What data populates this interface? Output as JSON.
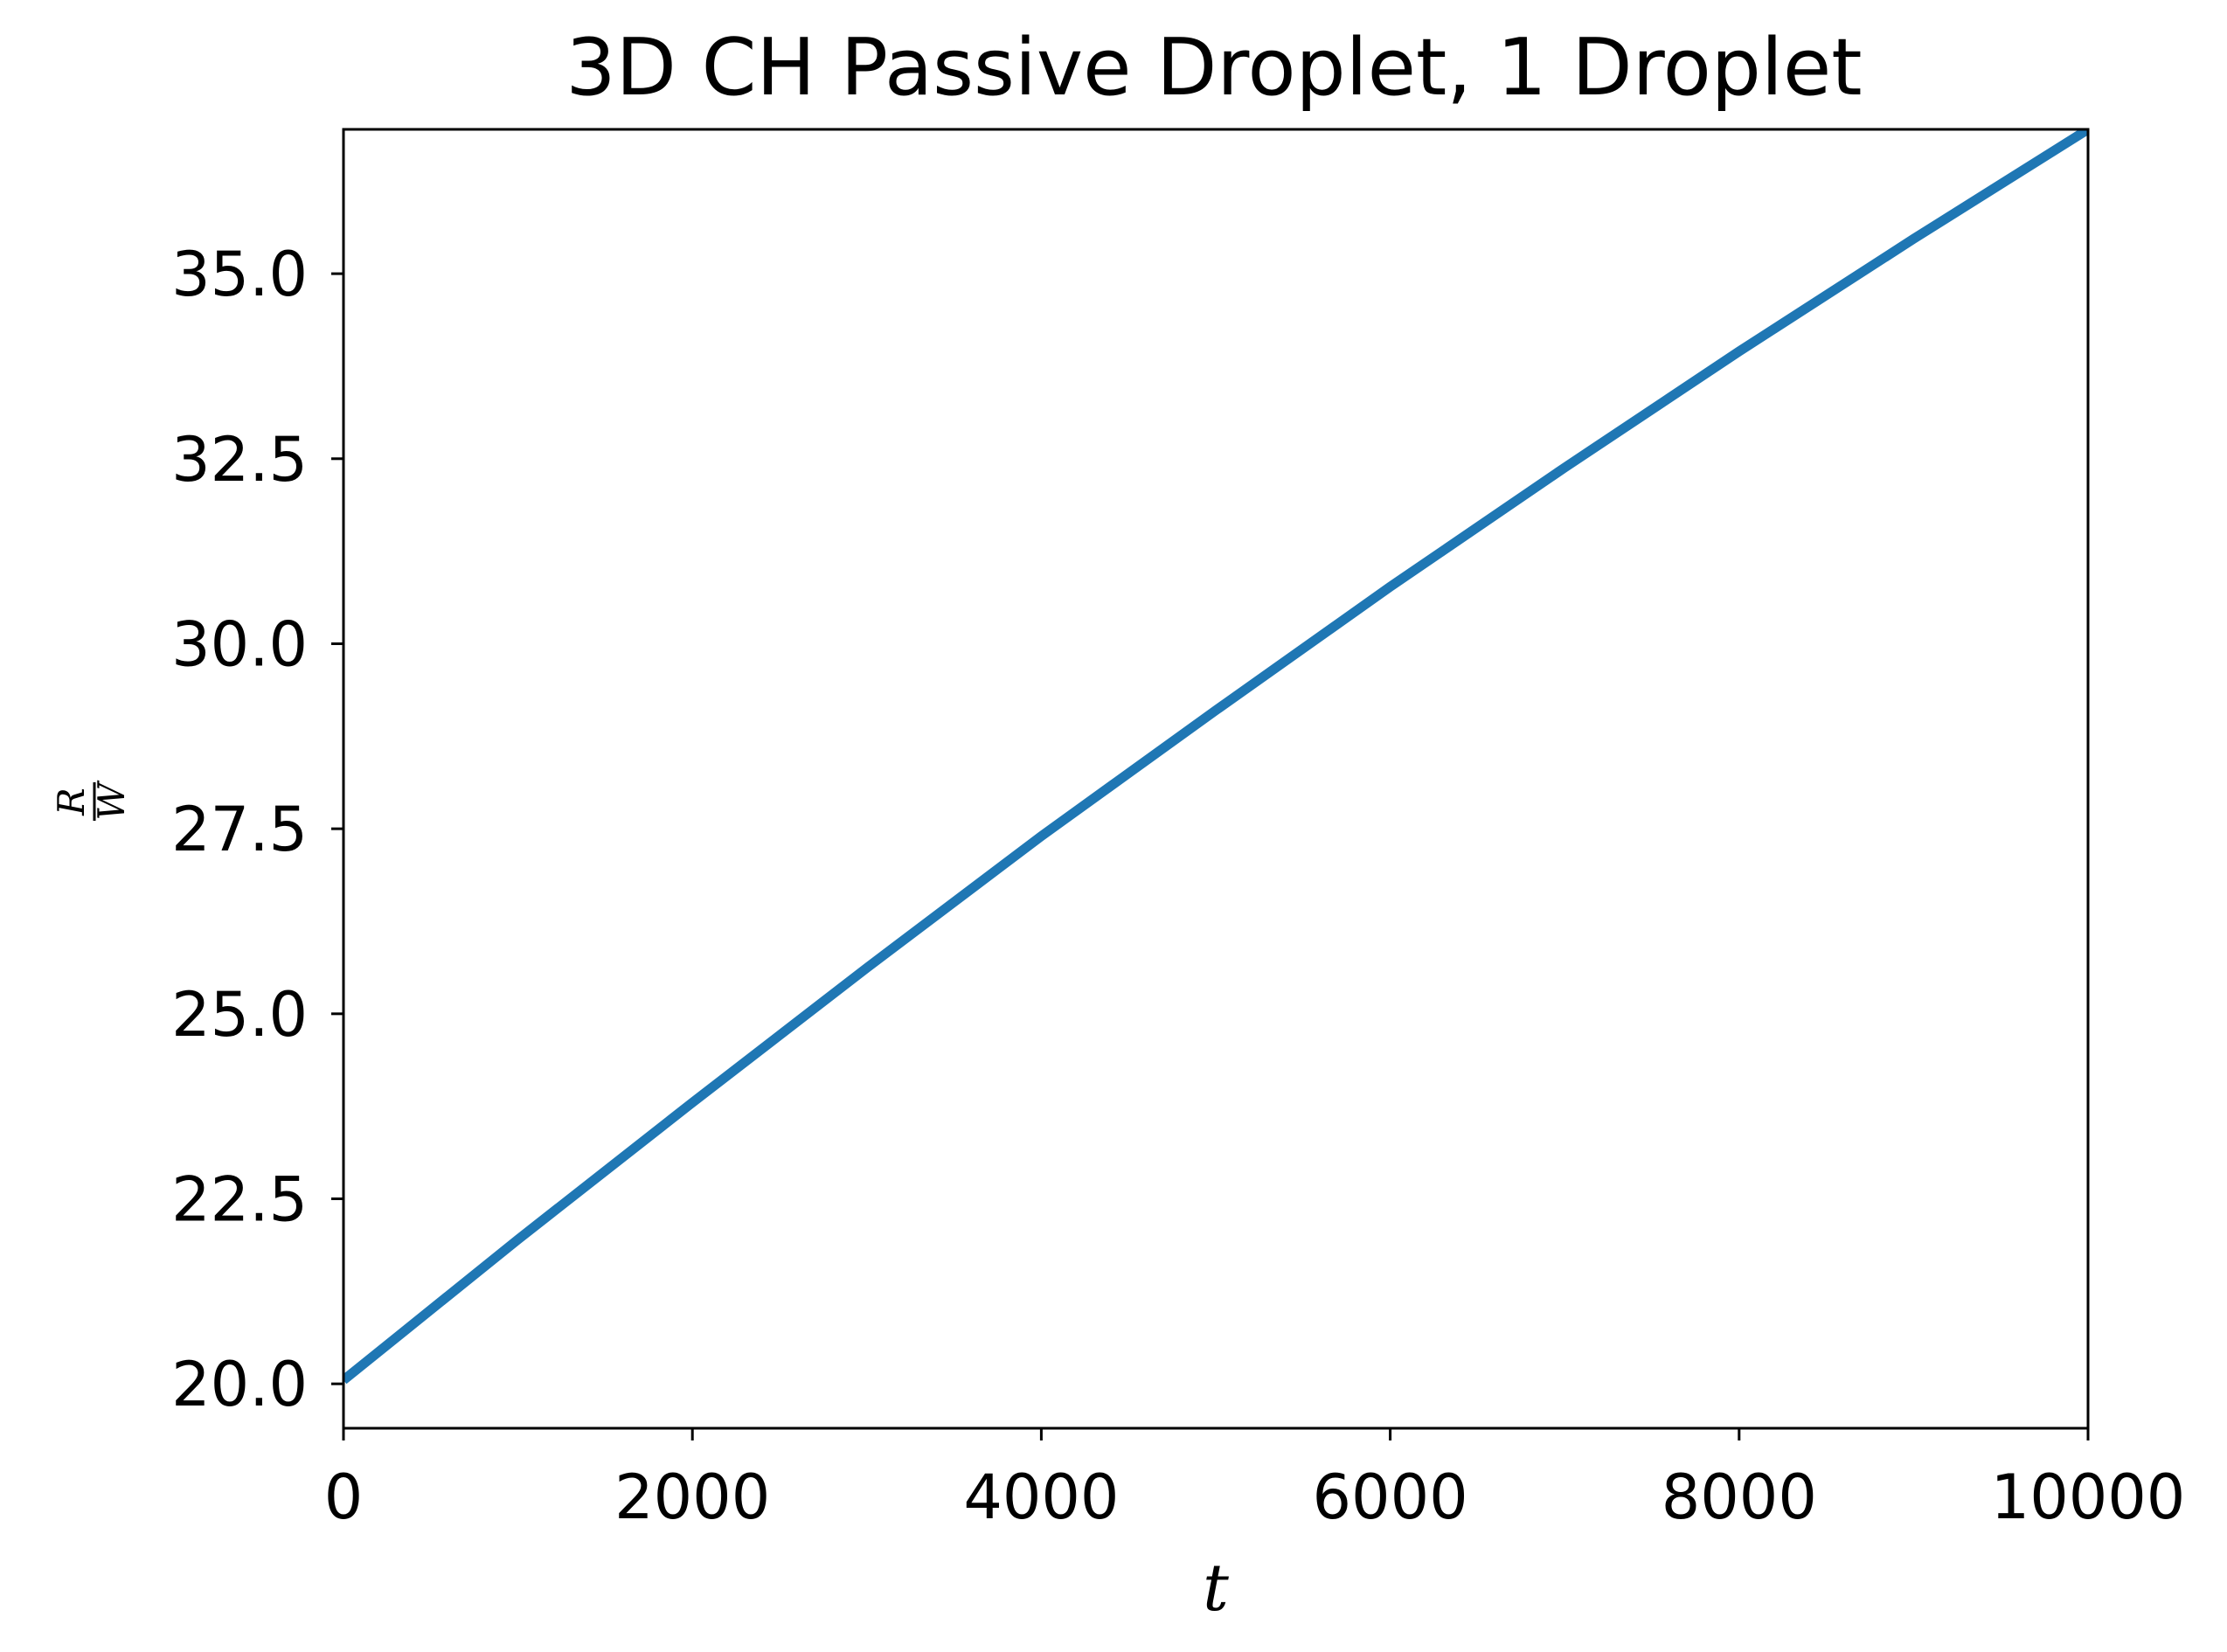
{
  "chart_data": {
    "type": "line",
    "title": "3D CH Passive Droplet, 1 Droplet",
    "xlabel": "t",
    "ylabel": {
      "numerator": "R",
      "denominator": "W"
    },
    "xlim": [
      0,
      10000
    ],
    "ylim": [
      19.4,
      36.95
    ],
    "grid": false,
    "legend": "none",
    "x_ticks": [
      {
        "value": 0,
        "label": "0"
      },
      {
        "value": 2000,
        "label": "2000"
      },
      {
        "value": 4000,
        "label": "4000"
      },
      {
        "value": 6000,
        "label": "6000"
      },
      {
        "value": 8000,
        "label": "8000"
      },
      {
        "value": 10000,
        "label": "10000"
      }
    ],
    "y_ticks": [
      {
        "value": 20.0,
        "label": "20.0"
      },
      {
        "value": 22.5,
        "label": "22.5"
      },
      {
        "value": 25.0,
        "label": "25.0"
      },
      {
        "value": 27.5,
        "label": "27.5"
      },
      {
        "value": 30.0,
        "label": "30.0"
      },
      {
        "value": 32.5,
        "label": "32.5"
      },
      {
        "value": 35.0,
        "label": "35.0"
      }
    ],
    "series": [
      {
        "color": "#1f77b4",
        "x": [
          0,
          1000,
          2000,
          3000,
          4000,
          5000,
          6000,
          7000,
          8000,
          9000,
          10000
        ],
        "y": [
          20.05,
          21.95,
          23.8,
          25.62,
          27.4,
          29.1,
          30.77,
          32.38,
          33.95,
          35.47,
          36.95
        ]
      }
    ]
  }
}
